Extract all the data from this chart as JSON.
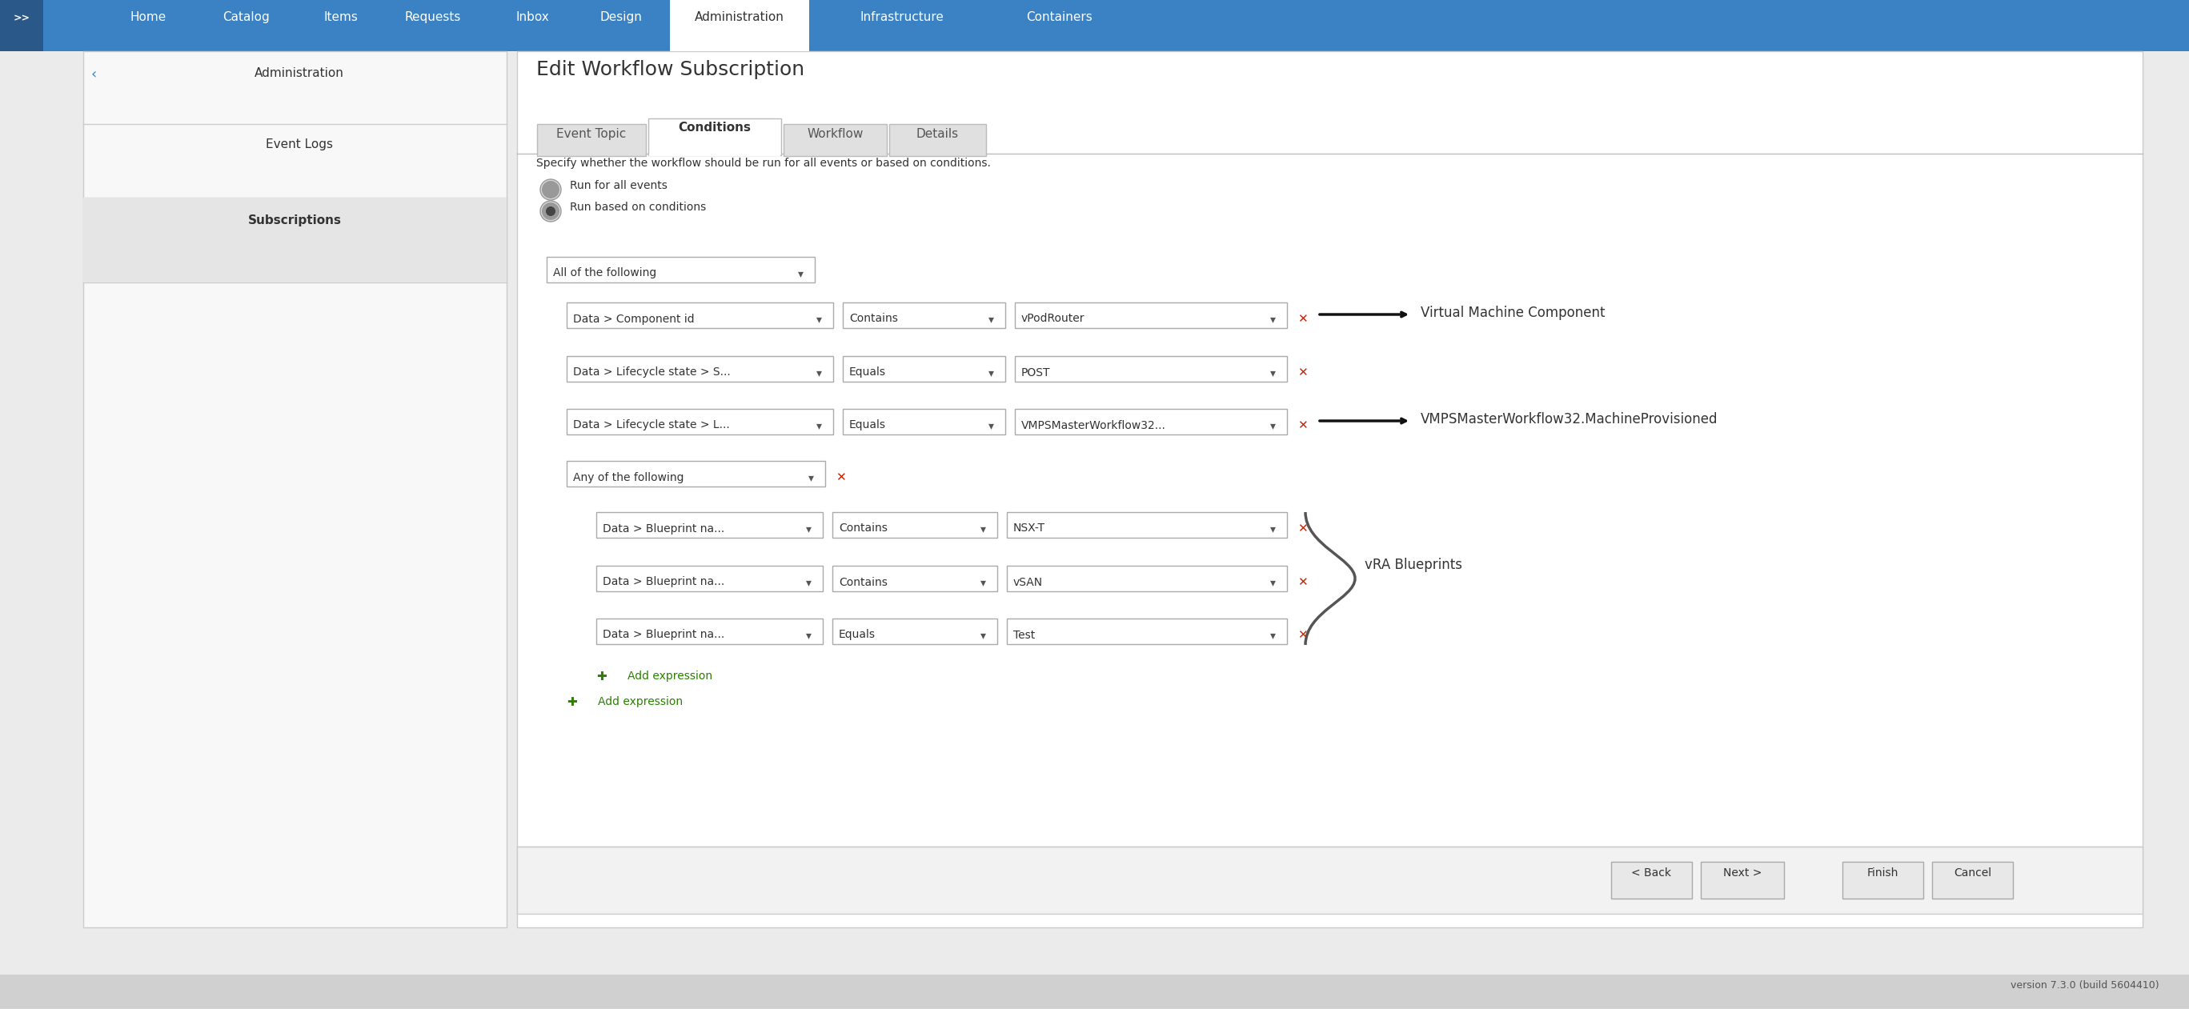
{
  "title": "Edit Workflow Subscription",
  "bg_outer": "#d8d8d8",
  "bg_main": "#f0f0f0",
  "white": "#ffffff",
  "blue_nav": "#3a82c4",
  "blue_nav_dark": "#2b6aaa",
  "sidebar_bg": "#f5f5f5",
  "sidebar_border": "#cccccc",
  "nav_items": [
    "Home",
    "Catalog",
    "Items",
    "Requests",
    "Inbox",
    "Design",
    "Administration",
    "Infrastructure",
    "Containers"
  ],
  "active_nav": "Administration",
  "sidebar_items": [
    "Administration",
    "Event Logs",
    "Subscriptions"
  ],
  "active_sidebar": "Subscriptions",
  "tabs": [
    "Event Topic",
    "Conditions",
    "Workflow",
    "Details"
  ],
  "active_tab": "Conditions",
  "specify_text": "Specify whether the workflow should be run for all events or based on conditions.",
  "radio_options": [
    "Run for all events",
    "Run based on conditions"
  ],
  "selected_radio": 1,
  "main_dropdown": "All of the following",
  "rows": [
    {
      "col1": "Data > Component id",
      "col2": "Contains",
      "col3": "vPodRouter"
    },
    {
      "col1": "Data > Lifecycle state > S...",
      "col2": "Equals",
      "col3": "POST"
    },
    {
      "col1": "Data > Lifecycle state > L...",
      "col2": "Equals",
      "col3": "VMPSMasterWorkflow32..."
    }
  ],
  "sub_dropdown": "Any of the following",
  "sub_rows": [
    {
      "col1": "Data > Blueprint na...",
      "col2": "Contains",
      "col3": "NSX-T"
    },
    {
      "col1": "Data > Blueprint na...",
      "col2": "Contains",
      "col3": "vSAN"
    },
    {
      "col1": "Data > Blueprint na...",
      "col2": "Equals",
      "col3": "Test"
    }
  ],
  "ann0": "Virtual Machine Component",
  "ann2": "VMPSMasterWorkflow32.MachineProvisioned",
  "brace_label": "vRA Blueprints",
  "add_expr1": "Add expression",
  "add_expr2": "Add expression",
  "footer_buttons": [
    "< Back",
    "Next >",
    "Finish",
    "Cancel"
  ],
  "version_text": "version 7.3.0 (build 5604410)",
  "S": 2.488
}
